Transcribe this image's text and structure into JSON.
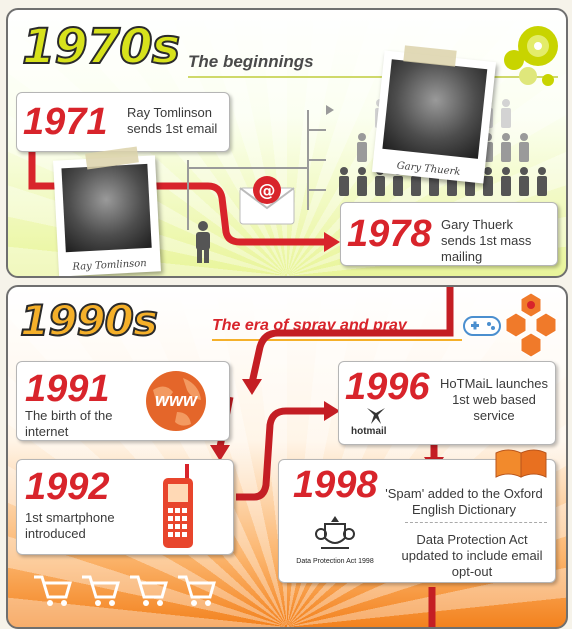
{
  "section_1970s": {
    "decade": "1970s",
    "subtitle": "The beginnings",
    "event_1971": {
      "year": "1971",
      "text": "Ray Tomlinson sends 1st email"
    },
    "photo_tomlinson_caption": "Ray Tomlinson",
    "photo_thuerk_caption": "Gary Thuerk",
    "event_1978": {
      "year": "1978",
      "text": "Gary Thuerk sends 1st mass mailing"
    }
  },
  "section_1990s": {
    "decade": "1990s",
    "subtitle": "The era of spray and pray",
    "event_1991": {
      "year": "1991",
      "text": "The birth of the internet",
      "icon_text": "www"
    },
    "event_1992": {
      "year": "1992",
      "text": "1st smartphone introduced"
    },
    "event_1996": {
      "year": "1996",
      "text": "HoTMaiL launches 1st web based service",
      "logo_text": "hotmail"
    },
    "event_1998": {
      "year": "1998",
      "text1": "'Spam' added to the Oxford English Dictionary",
      "text2": "Data Protection Act updated to include email opt-out",
      "act_label": "Data Protection Act 1998"
    }
  },
  "colors": {
    "red": "#d8242b",
    "lime": "#c8d400",
    "orange": "#f3821e",
    "grey": "#5a5a5a"
  },
  "icons": [
    "people-crowd-icon",
    "person-icon",
    "email-envelope-icon",
    "globe-icon",
    "mobile-phone-icon",
    "open-book-icon",
    "royal-crest-icon",
    "shopping-cart-icon",
    "cd-disc-icon",
    "hexagon-network-icon",
    "game-controller-icon"
  ]
}
